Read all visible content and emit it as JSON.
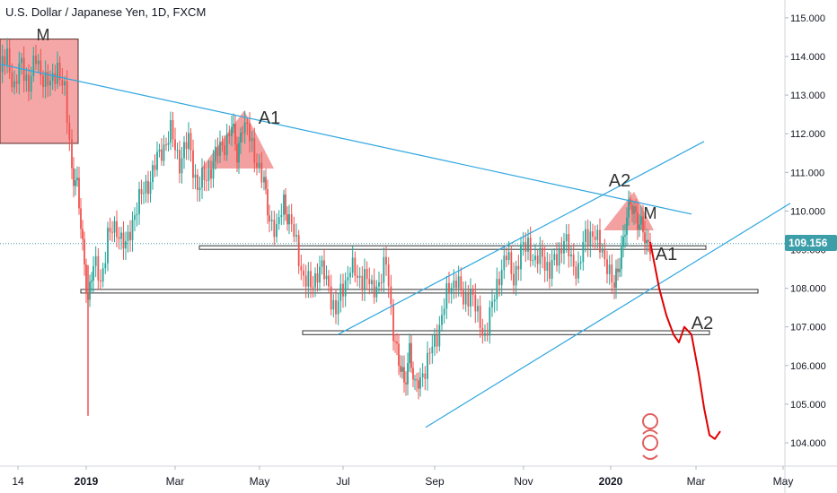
{
  "chart_data": {
    "type": "candlestick",
    "title": "U.S. Dollar / Japanese Yen, 1D, FXCM",
    "ylim": [
      103.7,
      115.3
    ],
    "y_ticks": [
      "104.000",
      "105.000",
      "106.000",
      "107.000",
      "108.000",
      "109.000",
      "110.000",
      "111.000",
      "112.000",
      "113.000",
      "114.000",
      "115.000"
    ],
    "x_ticks": [
      "14",
      "2019",
      "Mar",
      "May",
      "Jul",
      "Sep",
      "Nov",
      "2020",
      "Mar",
      "May"
    ],
    "current_price": "109.156",
    "annotations": [
      "M",
      "A1",
      "A2",
      "M",
      "A1",
      "A2"
    ],
    "price_path": [
      [
        0,
        113.6
      ],
      [
        8,
        114.0
      ],
      [
        16,
        113.2
      ],
      [
        24,
        113.8
      ],
      [
        32,
        113.3
      ],
      [
        40,
        113.9
      ],
      [
        48,
        113.5
      ],
      [
        56,
        113.2
      ],
      [
        64,
        113.8
      ],
      [
        72,
        113.0
      ],
      [
        80,
        111.2
      ],
      [
        86,
        110.6
      ],
      [
        92,
        109.0
      ],
      [
        98,
        107.8
      ],
      [
        104,
        108.6
      ],
      [
        112,
        108.2
      ],
      [
        120,
        109.3
      ],
      [
        130,
        109.6
      ],
      [
        140,
        109.0
      ],
      [
        150,
        110.0
      ],
      [
        160,
        110.5
      ],
      [
        170,
        111.0
      ],
      [
        180,
        111.6
      ],
      [
        190,
        112.0
      ],
      [
        200,
        111.3
      ],
      [
        210,
        111.8
      ],
      [
        220,
        110.6
      ],
      [
        230,
        110.9
      ],
      [
        240,
        111.4
      ],
      [
        250,
        111.8
      ],
      [
        258,
        112.1
      ],
      [
        264,
        111.5
      ],
      [
        270,
        112.3
      ],
      [
        278,
        111.9
      ],
      [
        286,
        111.3
      ],
      [
        294,
        110.6
      ],
      [
        300,
        109.9
      ],
      [
        308,
        109.4
      ],
      [
        316,
        110.3
      ],
      [
        322,
        109.8
      ],
      [
        330,
        109.1
      ],
      [
        338,
        108.3
      ],
      [
        346,
        108.0
      ],
      [
        356,
        108.6
      ],
      [
        366,
        108.0
      ],
      [
        374,
        107.4
      ],
      [
        382,
        108.0
      ],
      [
        390,
        108.6
      ],
      [
        398,
        108.2
      ],
      [
        406,
        108.4
      ],
      [
        414,
        107.9
      ],
      [
        422,
        108.2
      ],
      [
        430,
        108.6
      ],
      [
        438,
        107.0
      ],
      [
        444,
        106.0
      ],
      [
        450,
        105.5
      ],
      [
        456,
        106.5
      ],
      [
        462,
        105.3
      ],
      [
        468,
        105.7
      ],
      [
        476,
        106.1
      ],
      [
        484,
        106.6
      ],
      [
        492,
        107.3
      ],
      [
        500,
        108.0
      ],
      [
        508,
        108.3
      ],
      [
        516,
        107.6
      ],
      [
        524,
        108.0
      ],
      [
        532,
        107.2
      ],
      [
        540,
        106.8
      ],
      [
        548,
        107.5
      ],
      [
        556,
        108.4
      ],
      [
        564,
        108.8
      ],
      [
        572,
        108.3
      ],
      [
        580,
        108.9
      ],
      [
        588,
        109.2
      ],
      [
        596,
        108.6
      ],
      [
        604,
        108.9
      ],
      [
        612,
        108.4
      ],
      [
        620,
        108.8
      ],
      [
        628,
        109.3
      ],
      [
        636,
        108.7
      ],
      [
        644,
        108.5
      ],
      [
        652,
        109.3
      ],
      [
        660,
        109.5
      ],
      [
        668,
        109.0
      ],
      [
        676,
        108.7
      ],
      [
        684,
        107.9
      ],
      [
        690,
        108.8
      ],
      [
        696,
        109.6
      ],
      [
        702,
        110.1
      ],
      [
        708,
        110.0
      ],
      [
        714,
        109.6
      ],
      [
        720,
        109.0
      ],
      [
        724,
        109.2
      ]
    ],
    "projection_path": [
      [
        724,
        109.2
      ],
      [
        734,
        108.0
      ],
      [
        742,
        107.3
      ],
      [
        750,
        106.8
      ],
      [
        756,
        106.6
      ],
      [
        762,
        107.0
      ],
      [
        770,
        106.8
      ],
      [
        778,
        105.8
      ],
      [
        784,
        104.9
      ],
      [
        790,
        104.2
      ],
      [
        796,
        104.1
      ],
      [
        802,
        104.3
      ]
    ],
    "wick_spikes": [
      {
        "x": 98,
        "low": 104.7,
        "high": 108.6
      }
    ],
    "support_boxes": [
      {
        "x0": 222,
        "x1": 786,
        "y0": 109.03,
        "y1": 109.1
      },
      {
        "x0": 90,
        "x1": 844,
        "y0": 107.9,
        "y1": 107.97
      },
      {
        "x0": 337,
        "x1": 790,
        "y0": 106.8,
        "y1": 106.9
      }
    ],
    "pattern_box": {
      "x0": 0,
      "x1": 87,
      "y0": 111.75,
      "y1": 114.45
    },
    "triangles": [
      [
        [
          224,
          111.1
        ],
        [
          272,
          112.6
        ],
        [
          305,
          111.1
        ]
      ],
      [
        [
          672,
          109.5
        ],
        [
          706,
          110.5
        ],
        [
          728,
          109.5
        ]
      ]
    ],
    "trend_lines": [
      {
        "x0": 0,
        "y0": 113.8,
        "x1": 770,
        "y1": 109.92
      },
      {
        "x0": 376,
        "y0": 106.8,
        "x1": 784,
        "y1": 111.8
      },
      {
        "x0": 474,
        "y0": 104.4,
        "x1": 880,
        "y1": 110.2
      }
    ],
    "current_price_line": true,
    "colors": {
      "up": "#26a69a",
      "down": "#ef5350",
      "projection": "#e00000",
      "lines": "#2ea6df",
      "box_fill": "#f08a88",
      "price_badge": "#3b9ea8"
    }
  }
}
